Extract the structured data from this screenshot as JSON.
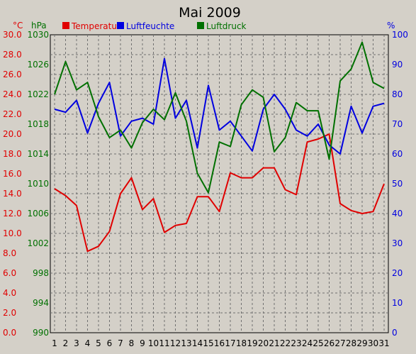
{
  "chart_data": {
    "type": "line",
    "title": "Mai 2009",
    "x": [
      1,
      2,
      3,
      4,
      5,
      6,
      7,
      8,
      9,
      10,
      11,
      12,
      13,
      14,
      15,
      16,
      17,
      18,
      19,
      20,
      21,
      22,
      23,
      24,
      25,
      26,
      27,
      28,
      29,
      30,
      31
    ],
    "axes": {
      "temp": {
        "unit": "°C",
        "min": 0,
        "max": 30,
        "ticks": [
          "0.0",
          "2.0",
          "4.0",
          "6.0",
          "8.0",
          "10.0",
          "12.0",
          "14.0",
          "16.0",
          "18.0",
          "20.0",
          "22.0",
          "24.0",
          "26.0",
          "28.0",
          "30.0"
        ]
      },
      "pressure": {
        "unit": "hPa",
        "min": 990,
        "max": 1030,
        "ticks": [
          "990",
          "994",
          "998",
          "1002",
          "1006",
          "1010",
          "1014",
          "1018",
          "1022",
          "1026",
          "1030"
        ]
      },
      "humidity": {
        "unit": "%",
        "min": 0,
        "max": 100,
        "ticks": [
          "0",
          "10",
          "20",
          "30",
          "40",
          "50",
          "60",
          "70",
          "80",
          "90",
          "100"
        ]
      }
    },
    "series": [
      {
        "name": "Temperatur",
        "axis": "temp",
        "color": "#e00000",
        "values": [
          14.5,
          13.8,
          12.8,
          8.2,
          8.7,
          10.2,
          14.0,
          15.6,
          12.4,
          13.5,
          10.1,
          10.8,
          11.0,
          13.7,
          13.7,
          12.2,
          16.1,
          15.6,
          15.6,
          16.6,
          16.6,
          14.4,
          13.9,
          19.2,
          19.5,
          20.0,
          13.0,
          12.3,
          12.0,
          12.2,
          15.0
        ]
      },
      {
        "name": "Luftfeuchte",
        "axis": "humidity",
        "color": "#0000e0",
        "values": [
          75,
          74,
          78,
          67,
          77,
          84,
          66,
          71,
          72,
          70,
          92,
          72,
          78,
          62,
          83,
          68,
          71,
          66,
          61,
          75,
          80,
          75,
          68,
          66,
          70,
          63,
          60,
          76,
          67,
          76,
          77
        ]
      },
      {
        "name": "Luftdruck",
        "axis": "pressure",
        "color": "#007000",
        "values": [
          1022,
          1026.4,
          1022.6,
          1023.6,
          1019,
          1016.2,
          1017.2,
          1014.8,
          1018.2,
          1020,
          1018.6,
          1022.2,
          1018.4,
          1011.4,
          1008.8,
          1015.6,
          1015,
          1020.6,
          1022.6,
          1021.6,
          1014.3,
          1016.2,
          1020.9,
          1019.8,
          1019.8,
          1013.3,
          1023.8,
          1025.4,
          1029,
          1023.6,
          1022.8
        ]
      }
    ],
    "grid": true,
    "legend": "top"
  }
}
